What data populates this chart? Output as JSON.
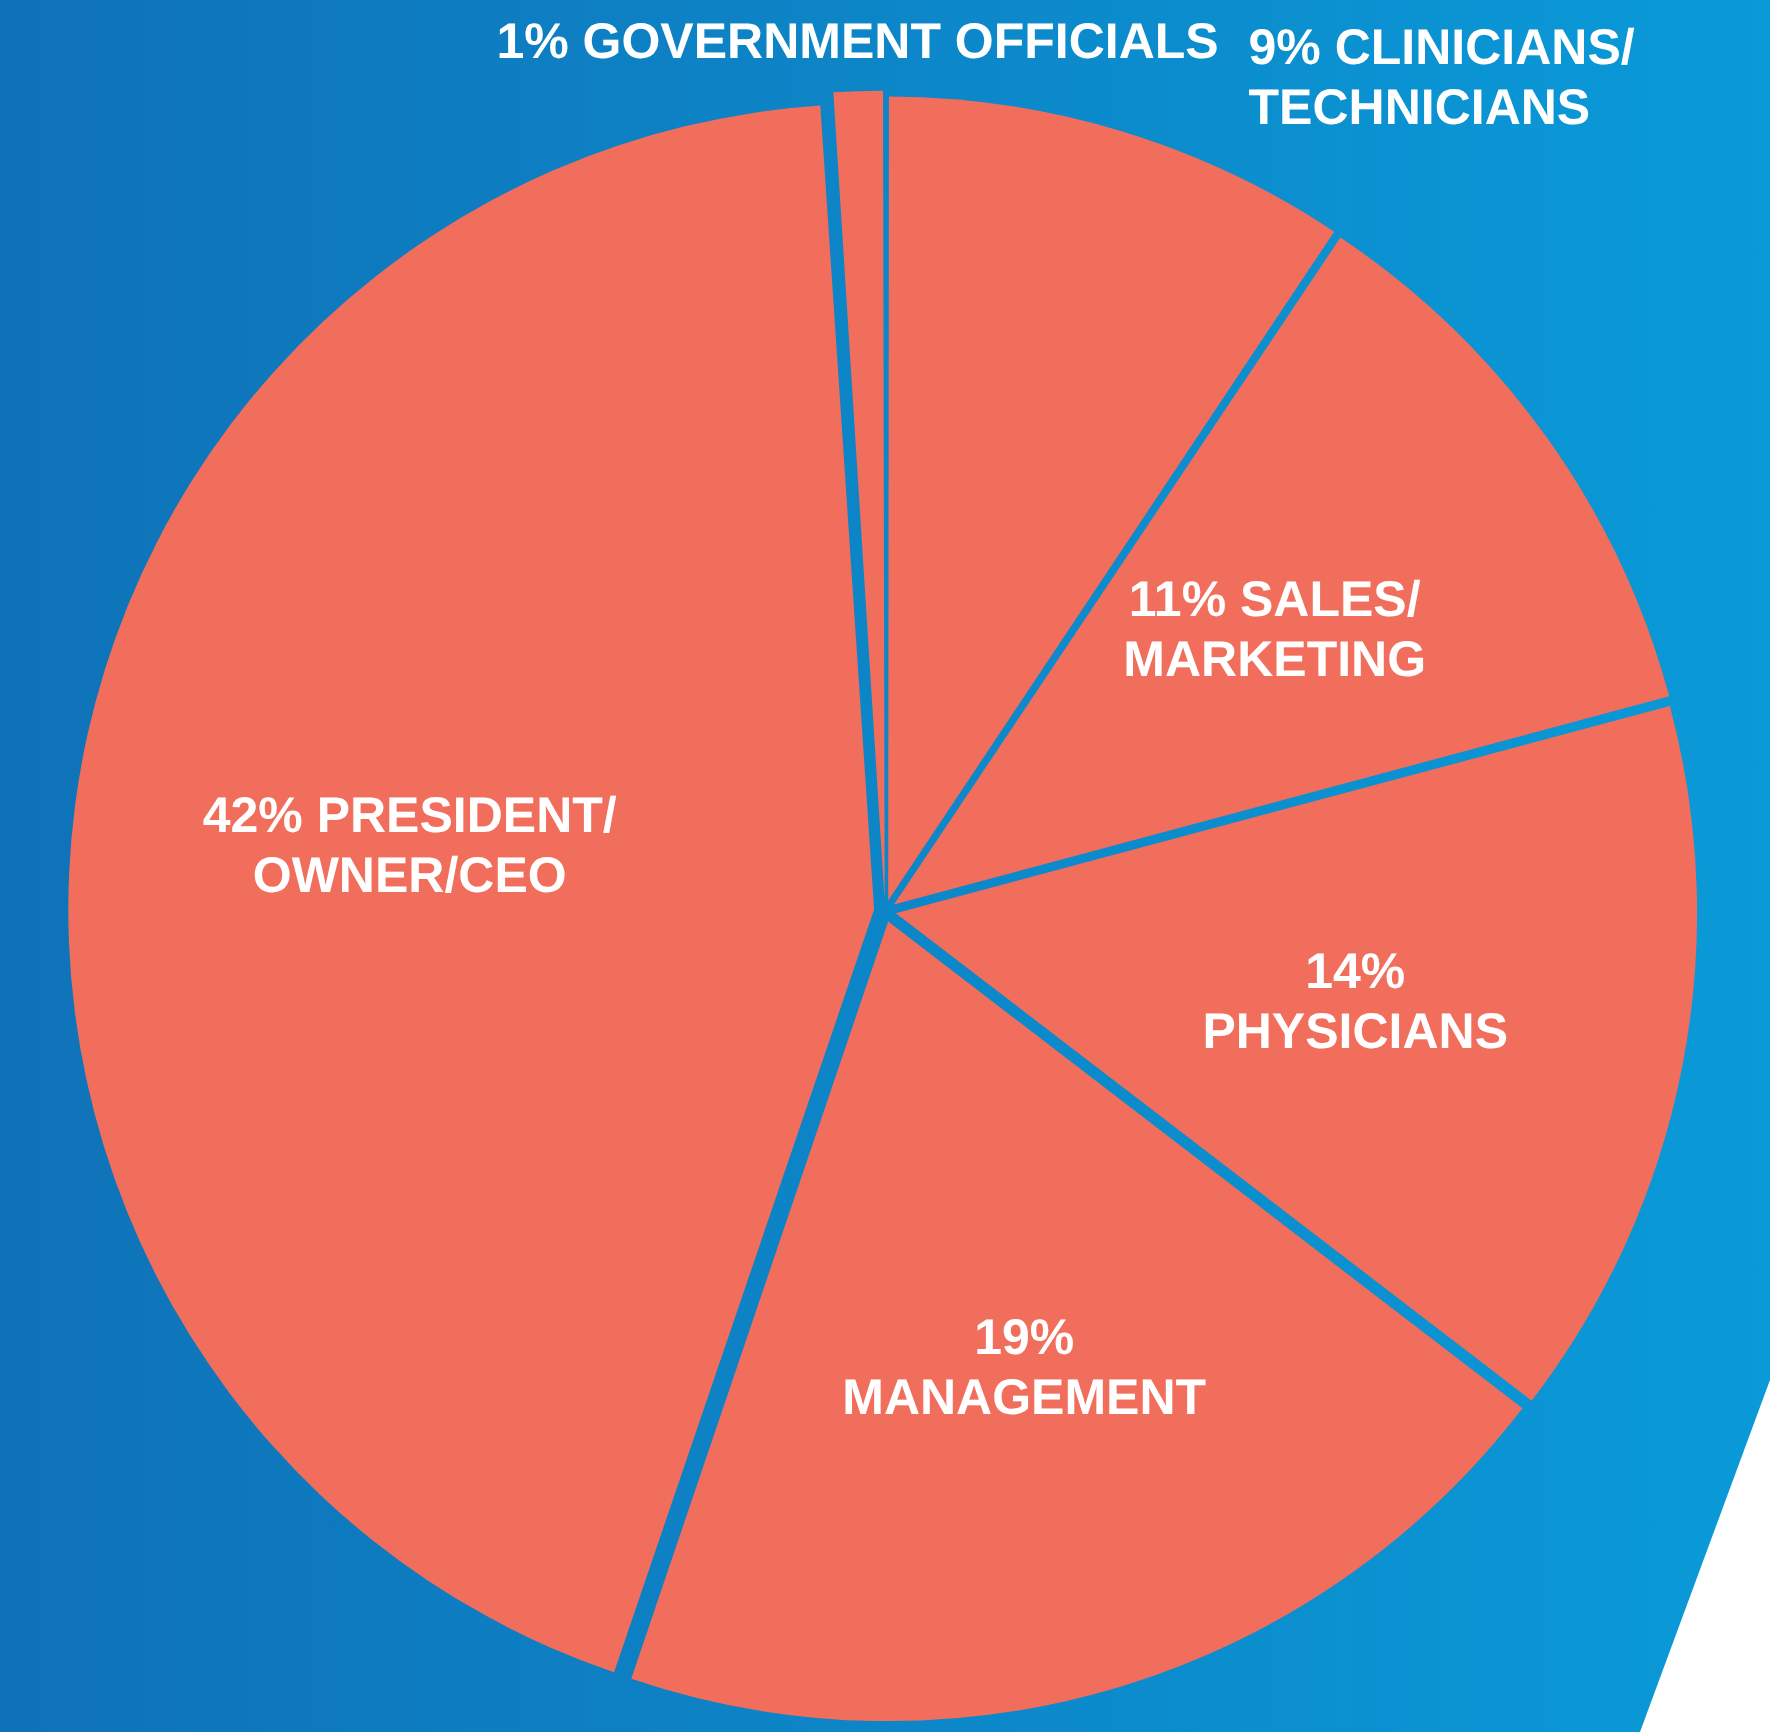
{
  "chart_data": {
    "type": "pie",
    "categories": [
      "CLINICIANS/TECHNICIANS",
      "SALES/MARKETING",
      "PHYSICIANS",
      "MANAGEMENT",
      "PRESIDENT/OWNER/CEO",
      "GOVERNMENT OFFICIALS"
    ],
    "values": [
      9,
      11,
      14,
      19,
      42,
      1
    ],
    "value_labels": [
      "9%",
      "11%",
      "14%",
      "19%",
      "42%",
      "1%"
    ],
    "colors": [
      "#f26e5c",
      "#f26e5c",
      "#f26e5c",
      "#f26e5c",
      "#f26e5c",
      "#f26e5c"
    ],
    "data_labels": true,
    "legend": false
  }
}
